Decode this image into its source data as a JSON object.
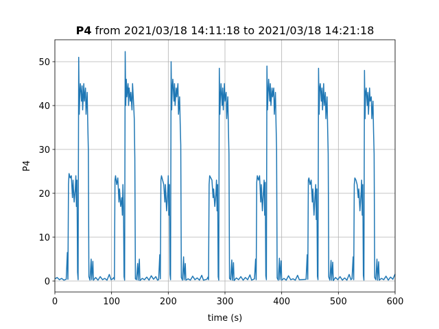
{
  "chart_data": {
    "type": "line",
    "title_parts": [
      "P4",
      "from 2021/03/18 14:11:18 to 2021/03/18 14:21:18"
    ],
    "x_label": "time (s)",
    "y_label": "P4",
    "color": "#1f77b4",
    "grid": true,
    "xlim": [
      0,
      600
    ],
    "ylim": [
      -2.5,
      55
    ],
    "xticks": [
      0,
      100,
      200,
      300,
      400,
      500,
      600
    ],
    "yticks": [
      0,
      10,
      20,
      30,
      40,
      50
    ],
    "x": [
      0,
      4,
      8,
      12,
      16,
      20,
      22,
      23,
      24,
      25,
      27,
      29,
      31,
      32,
      34,
      36,
      37,
      38,
      39,
      40,
      41,
      42,
      43,
      44,
      45,
      47,
      48,
      49,
      51,
      52,
      54,
      55,
      57,
      58,
      59,
      60,
      62,
      64,
      65,
      67,
      68,
      72,
      76,
      80,
      84,
      88,
      92,
      96,
      99,
      102,
      104,
      105,
      106,
      107,
      109,
      111,
      113,
      114,
      116,
      118,
      119,
      120,
      121,
      122,
      123,
      124,
      125,
      126,
      127,
      129,
      130,
      131,
      133,
      134,
      136,
      137,
      139,
      140,
      141,
      142,
      144,
      146,
      147,
      149,
      150,
      154,
      158,
      162,
      166,
      170,
      174,
      178,
      181,
      183,
      185,
      186,
      187,
      188,
      190,
      192,
      194,
      195,
      197,
      199,
      200,
      201,
      202,
      203,
      204,
      205,
      206,
      207,
      208,
      210,
      211,
      212,
      214,
      215,
      217,
      218,
      220,
      221,
      222,
      223,
      225,
      227,
      228,
      230,
      231,
      235,
      239,
      243,
      247,
      251,
      255,
      259,
      262,
      268,
      270,
      271,
      272,
      273,
      275,
      277,
      279,
      280,
      282,
      284,
      285,
      286,
      287,
      288,
      289,
      290,
      291,
      292,
      293,
      295,
      296,
      297,
      299,
      300,
      302,
      303,
      305,
      306,
      307,
      308,
      310,
      312,
      313,
      315,
      316,
      320,
      324,
      328,
      332,
      336,
      340,
      344,
      347,
      352,
      354,
      355,
      356,
      357,
      359,
      361,
      363,
      364,
      366,
      368,
      369,
      370,
      371,
      372,
      373,
      374,
      375,
      376,
      377,
      379,
      380,
      381,
      383,
      384,
      386,
      387,
      389,
      390,
      391,
      392,
      394,
      396,
      397,
      399,
      400,
      404,
      408,
      412,
      416,
      420,
      424,
      428,
      431,
      443,
      445,
      446,
      447,
      448,
      450,
      452,
      454,
      455,
      457,
      459,
      460,
      461,
      462,
      463,
      464,
      465,
      466,
      467,
      468,
      470,
      471,
      472,
      474,
      475,
      477,
      478,
      480,
      481,
      482,
      483,
      485,
      487,
      488,
      490,
      491,
      495,
      499,
      503,
      507,
      511,
      515,
      519,
      522,
      524,
      526,
      527,
      528,
      529,
      531,
      533,
      535,
      536,
      538,
      540,
      541,
      542,
      543,
      544,
      545,
      546,
      547,
      548,
      549,
      551,
      552,
      553,
      555,
      556,
      558,
      559,
      561,
      562,
      563,
      564,
      566,
      568,
      569,
      571,
      572,
      576,
      580,
      584,
      588,
      592,
      596,
      600
    ],
    "values": [
      0.5,
      0.8,
      0.3,
      0.6,
      0.2,
      0.4,
      6.5,
      0.4,
      22,
      24.5,
      23.5,
      24,
      19,
      23,
      18,
      21,
      24,
      17,
      23,
      2,
      0.3,
      51,
      38,
      43,
      45,
      41,
      44.5,
      39,
      45,
      41,
      44,
      38,
      43,
      36,
      30,
      1,
      0.2,
      5,
      0.3,
      4.5,
      0.2,
      0.8,
      0.2,
      1.0,
      0.3,
      0.6,
      0.2,
      1.5,
      0.3,
      0.5,
      0.8,
      0.3,
      23,
      24,
      22,
      23.5,
      18,
      21,
      17,
      19,
      15,
      22,
      17,
      1,
      0.2,
      52.3,
      40,
      46,
      42,
      45,
      40,
      44,
      41,
      43,
      39,
      45,
      40,
      37,
      28,
      0.5,
      0.3,
      4,
      0.2,
      5,
      0.1,
      0.6,
      0.3,
      0.9,
      0.2,
      1.2,
      0.4,
      1.0,
      0.2,
      0.3,
      6,
      0.5,
      23,
      24,
      23,
      22,
      18,
      22,
      16,
      20,
      24,
      15,
      22,
      1.5,
      0.3,
      50,
      39,
      44,
      46,
      41,
      45,
      40,
      44,
      42,
      45,
      38,
      42,
      36,
      31,
      0.8,
      0.2,
      5.5,
      0.3,
      4,
      0.2,
      0.5,
      0.2,
      1.1,
      0.3,
      0.7,
      0.2,
      1.3,
      0.2,
      0.4,
      0.9,
      0.3,
      22,
      24,
      23.5,
      23,
      19,
      21,
      17,
      20,
      23,
      16,
      22,
      1,
      0.2,
      48.5,
      38,
      42,
      45,
      40,
      44,
      39,
      45,
      41,
      43,
      37,
      42,
      35,
      29,
      0.6,
      0.3,
      4.8,
      0.2,
      4.2,
      0.1,
      0.7,
      0.3,
      1.0,
      0.2,
      0.8,
      0.3,
      1.4,
      0.2,
      0.5,
      5,
      0.3,
      22.5,
      24,
      23,
      24,
      18,
      22,
      16,
      21,
      23,
      15,
      22.5,
      1.2,
      0.3,
      49,
      39,
      43,
      46,
      41,
      45,
      40,
      44,
      42,
      44,
      38,
      43,
      36,
      30,
      0.7,
      0.2,
      5.2,
      0.3,
      4.6,
      0.2,
      0.6,
      0.2,
      1.2,
      0.3,
      0.5,
      0.2,
      1.3,
      0.3,
      0.4,
      6,
      0.4,
      23,
      23.5,
      22,
      23,
      18,
      21,
      15,
      20,
      22,
      14,
      21,
      1.1,
      0.3,
      48.5,
      38,
      44,
      45,
      41,
      44,
      39,
      45,
      40,
      43,
      37,
      42,
      35,
      29,
      0.9,
      0.2,
      4.7,
      0.2,
      4.3,
      0.1,
      0.8,
      0.3,
      1.0,
      0.2,
      0.7,
      0.2,
      1.5,
      0.3,
      0.5,
      5.5,
      0.3,
      22,
      23.5,
      23,
      22,
      19,
      21,
      16,
      20,
      23,
      15,
      22,
      1.3,
      0.2,
      48,
      37,
      43,
      44,
      40,
      43,
      38,
      44,
      41,
      42,
      37,
      41,
      34,
      29,
      0.8,
      0.3,
      5,
      0.2,
      4.4,
      0.2,
      0.6,
      0.3,
      1.1,
      0.2,
      0.9,
      0.4,
      1.6
    ]
  }
}
